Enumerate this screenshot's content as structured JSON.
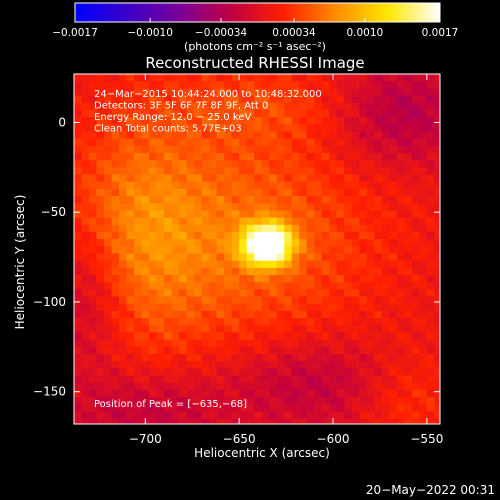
{
  "colorbar": {
    "tick_labels": [
      "−0.0017",
      "−0.0010",
      "−0.00034",
      "0.00034",
      "0.0010",
      "0.0017"
    ],
    "tick_values": [
      -0.0017,
      -0.001,
      -0.00034,
      0.00034,
      0.001,
      0.0017
    ],
    "range": [
      -0.0017,
      0.0017
    ],
    "units_label": "(photons cm⁻² s⁻¹ asec⁻²)",
    "colors": [
      "#0000ff",
      "#3a00c8",
      "#7a0098",
      "#c00040",
      "#ff2000",
      "#ff8c00",
      "#ffe600",
      "#ffffff"
    ]
  },
  "chart_data": {
    "type": "heatmap",
    "title": "Reconstructed RHESSI Image",
    "xlabel": "Heliocentric X (arcsec)",
    "ylabel": "Heliocentric Y (arcsec)",
    "xlim": [
      -738,
      -543
    ],
    "ylim": [
      -168,
      27
    ],
    "x_ticks": [
      -700,
      -650,
      -600,
      -550
    ],
    "x_tick_labels": [
      "−700",
      "−650",
      "−600",
      "−550"
    ],
    "y_ticks": [
      0,
      -50,
      -100,
      -150
    ],
    "y_tick_labels": [
      "0",
      "−50",
      "−100",
      "−150"
    ],
    "annotations": [
      "24−Mar−2015 10:44:24.000 to 10:48:32.000",
      "Detectors: 3F 5F 6F 7F 8F 9F, Att 0",
      "Energy Range: 12.0 − 25.0 keV",
      "Clean     Total counts: 5.77E+03"
    ],
    "peak_label": "Position of Peak = [−635,−68]",
    "peak": {
      "x": -635,
      "y": -68
    },
    "timestamp": "20−May−2022 00:31"
  }
}
